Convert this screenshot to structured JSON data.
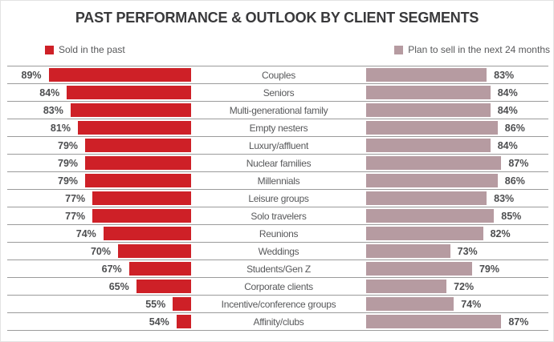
{
  "title": "PAST PERFORMANCE & OUTLOOK BY CLIENT SEGMENTS",
  "legend": {
    "past_label": "Sold in the past",
    "plan_label": "Plan to sell in the next 24 months"
  },
  "colors": {
    "past_bar": "#ce2027",
    "plan_bar": "#b69ba1",
    "grid_line": "#9b9b9b",
    "label_text": "#58595b",
    "title_text": "#39393b"
  },
  "chart_data": {
    "type": "bar",
    "orientation": "horizontal-butterfly",
    "title": "PAST PERFORMANCE & OUTLOOK BY CLIENT SEGMENTS",
    "categories": [
      "Couples",
      "Seniors",
      "Multi-generational family",
      "Empty nesters",
      "Luxury/affluent",
      "Nuclear families",
      "Millennials",
      "Leisure groups",
      "Solo travelers",
      "Reunions",
      "Weddings",
      "Students/Gen Z",
      "Corporate clients",
      "Incentive/conference groups",
      "Affinity/clubs"
    ],
    "series": [
      {
        "name": "Sold in the past",
        "values": [
          89,
          84,
          83,
          81,
          79,
          79,
          79,
          77,
          77,
          74,
          70,
          67,
          65,
          55,
          54
        ]
      },
      {
        "name": "Plan to sell in the next 24 months",
        "values": [
          83,
          84,
          84,
          86,
          84,
          87,
          86,
          83,
          85,
          82,
          73,
          79,
          72,
          74,
          87
        ]
      }
    ],
    "value_suffix": "%",
    "scale_min": 50,
    "grid": true,
    "legend_position": "top"
  }
}
